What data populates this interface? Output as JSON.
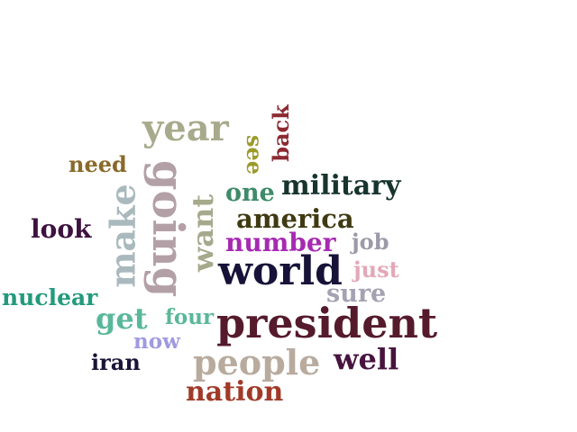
{
  "words": [
    {
      "text": "year",
      "color": "#a8aa8c"
    },
    {
      "text": "back",
      "color": "#8c2a32"
    },
    {
      "text": "see",
      "color": "#9c9a2a"
    },
    {
      "text": "need",
      "color": "#8a6a2a"
    },
    {
      "text": "going",
      "color": "#b3a0a6"
    },
    {
      "text": "make",
      "color": "#a9b9bd"
    },
    {
      "text": "want",
      "color": "#a7a98c"
    },
    {
      "text": "one",
      "color": "#3e8b6a"
    },
    {
      "text": "military",
      "color": "#17342e"
    },
    {
      "text": "look",
      "color": "#3d1240"
    },
    {
      "text": "america",
      "color": "#3f3a12"
    },
    {
      "text": "number",
      "color": "#a62ab2"
    },
    {
      "text": "job",
      "color": "#9c9aa8"
    },
    {
      "text": "world",
      "color": "#161238"
    },
    {
      "text": "just",
      "color": "#e3a8b8"
    },
    {
      "text": "sure",
      "color": "#a4a2b2"
    },
    {
      "text": "nuclear",
      "color": "#239a7c"
    },
    {
      "text": "get",
      "color": "#5ab89a"
    },
    {
      "text": "four",
      "color": "#5ab89a"
    },
    {
      "text": "president",
      "color": "#551a2c"
    },
    {
      "text": "now",
      "color": "#a09ae0"
    },
    {
      "text": "iran",
      "color": "#1a1438"
    },
    {
      "text": "people",
      "color": "#b8ab9e"
    },
    {
      "text": "well",
      "color": "#48143e"
    },
    {
      "text": "nation",
      "color": "#a03a28"
    }
  ]
}
